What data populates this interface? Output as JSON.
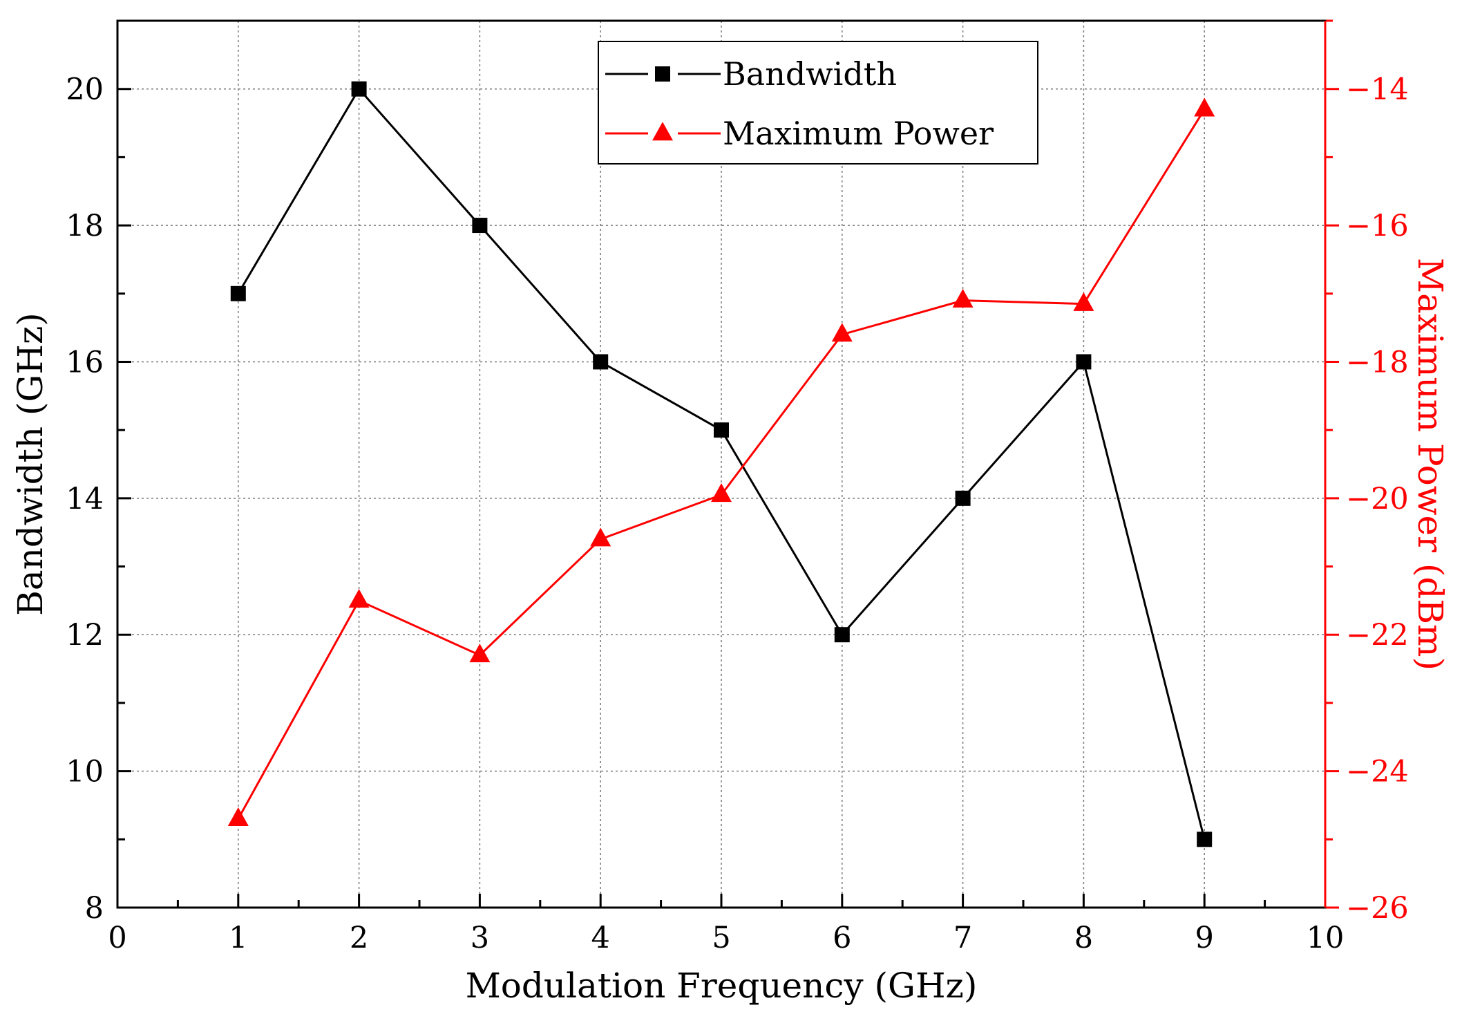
{
  "chart_data": {
    "type": "line",
    "title": "",
    "xlabel": "Modulation Frequency (GHz)",
    "ylabel_left": "Bandwidth (GHz)",
    "ylabel_right": "Maximum Power (dBm)",
    "xlim": [
      0,
      10
    ],
    "ylim_left": [
      8,
      21
    ],
    "ylim_right": [
      -26,
      -13
    ],
    "x_ticks": [
      0,
      1,
      2,
      3,
      4,
      5,
      6,
      7,
      8,
      9,
      10
    ],
    "x_tick_labels": [
      "0",
      "1",
      "2",
      "3",
      "4",
      "5",
      "6",
      "7",
      "8",
      "9",
      "10"
    ],
    "y_left_ticks": [
      8,
      10,
      12,
      14,
      16,
      18,
      20
    ],
    "y_left_tick_labels": [
      "8",
      "10",
      "12",
      "14",
      "16",
      "18",
      "20"
    ],
    "y_right_ticks": [
      -26,
      -24,
      -22,
      -20,
      -18,
      -16,
      -14
    ],
    "y_right_tick_labels": [
      "−26",
      "−24",
      "−22",
      "−20",
      "−18",
      "−16",
      "−14"
    ],
    "grid": true,
    "legend_position": "top-center",
    "series": [
      {
        "name": "Bandwidth",
        "axis": "left",
        "marker": "square",
        "color": "#000000",
        "x": [
          1,
          2,
          3,
          4,
          5,
          6,
          7,
          8,
          9
        ],
        "values": [
          17,
          20,
          18,
          16,
          15,
          12,
          14,
          16,
          9
        ]
      },
      {
        "name": "Maximum Power",
        "axis": "right",
        "marker": "triangle",
        "color": "#ff0000",
        "x": [
          1,
          2,
          3,
          4,
          5,
          6,
          7,
          8,
          9
        ],
        "values": [
          -24.7,
          -21.5,
          -22.3,
          -20.6,
          -19.95,
          -17.6,
          -17.1,
          -17.15,
          -14.3
        ]
      }
    ]
  }
}
